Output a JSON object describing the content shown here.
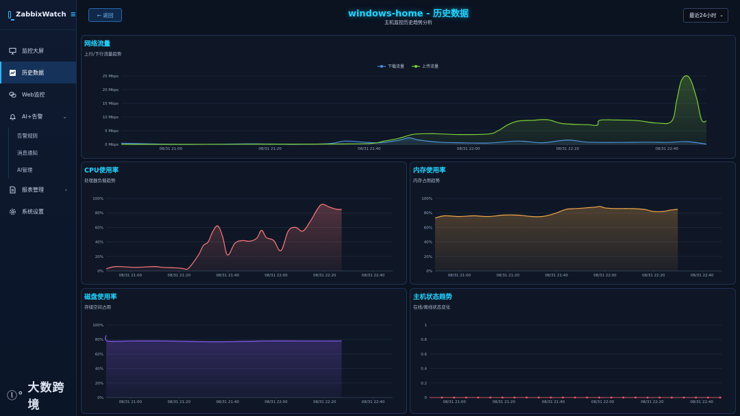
{
  "app": {
    "name": "ZabbixWatch"
  },
  "sidebar": {
    "items": [
      {
        "label": "监控大屏",
        "icon": "monitor-icon"
      },
      {
        "label": "历史数据",
        "icon": "chart-icon",
        "active": true
      },
      {
        "label": "Web监控",
        "icon": "link-icon"
      },
      {
        "label": "AI+告警",
        "icon": "bell-icon",
        "expanded": true
      },
      {
        "label": "报表管理",
        "icon": "report-icon"
      },
      {
        "label": "系统设置",
        "icon": "gear-icon"
      }
    ],
    "alert_sub_items": [
      "告警规则",
      "消息通知",
      "AI管理"
    ],
    "watermark": "大数跨境"
  },
  "header": {
    "back_label": "← 返回",
    "title": "windows-home - 历史数据",
    "subtitle": "主机监控历史趋势分析",
    "range_value": "最近24小时"
  },
  "colors": {
    "accent": "#22d3ff",
    "download": "#4a8fe6",
    "upload": "#7fd13b",
    "cpu": "#ff7b7b",
    "memory": "#f0a848",
    "disk": "#8b5cf6",
    "status": "#ff5a6e"
  },
  "panels": {
    "network": {
      "title": "网络流量",
      "subtitle": "上行/下行流量趋势"
    },
    "cpu": {
      "title": "CPU使用率",
      "subtitle": "处理器负载趋势"
    },
    "memory": {
      "title": "内存使用率",
      "subtitle": "内存占用趋势"
    },
    "disk": {
      "title": "磁盘使用率",
      "subtitle": "存储空间占用"
    },
    "status": {
      "title": "主机状态趋势",
      "subtitle": "在线/离线状态变化"
    }
  },
  "chart_data": [
    {
      "id": "network",
      "type": "area",
      "y_ticks": [
        "0 Mbps",
        "5 Mbps",
        "10 Mbps",
        "15 Mbps",
        "20 Mbps",
        "25 Mbps"
      ],
      "ylim": [
        0,
        25
      ],
      "x_range_minutes": [
        1250,
        1368
      ],
      "x_ticks": [
        "08/31 21:00",
        "08/31 21:20",
        "08/31 21:40",
        "08/31 22:00",
        "08/31 22:20",
        "08/31 22:40"
      ],
      "x_tick_minutes": [
        1260,
        1280,
        1300,
        1320,
        1340,
        1360
      ],
      "legend_position": "top-center",
      "grid": true,
      "series": [
        {
          "name": "下载流量",
          "color": "#4a8fe6",
          "points": [
            [
              1250,
              0.4
            ],
            [
              1258,
              0.1
            ],
            [
              1264,
              0.0
            ],
            [
              1270,
              0.05
            ],
            [
              1276,
              0.2
            ],
            [
              1282,
              0.1
            ],
            [
              1285,
              0.0
            ],
            [
              1292,
              0.3
            ],
            [
              1295,
              1.2
            ],
            [
              1299,
              0.8
            ],
            [
              1302,
              0.6
            ],
            [
              1306,
              1.5
            ],
            [
              1308,
              2.4
            ],
            [
              1310,
              1.6
            ],
            [
              1314,
              0.8
            ],
            [
              1318,
              0.6
            ],
            [
              1324,
              0.5
            ],
            [
              1330,
              1.2
            ],
            [
              1335,
              0.6
            ],
            [
              1340,
              1.6
            ],
            [
              1344,
              0.8
            ],
            [
              1350,
              0.7
            ],
            [
              1356,
              0.8
            ],
            [
              1360,
              0.7
            ],
            [
              1364,
              1.0
            ],
            [
              1368,
              0.1
            ]
          ]
        },
        {
          "name": "上传流量",
          "color": "#7fd13b",
          "points": [
            [
              1250,
              0.0
            ],
            [
              1262,
              0.0
            ],
            [
              1275,
              0.05
            ],
            [
              1290,
              0.1
            ],
            [
              1300,
              0.3
            ],
            [
              1303,
              1.2
            ],
            [
              1306,
              2.2
            ],
            [
              1309,
              3.7
            ],
            [
              1313,
              3.9
            ],
            [
              1318,
              3.6
            ],
            [
              1324,
              3.8
            ],
            [
              1326,
              5.0
            ],
            [
              1328,
              7.2
            ],
            [
              1330,
              8.5
            ],
            [
              1333,
              8.8
            ],
            [
              1336,
              9.0
            ],
            [
              1339,
              7.6
            ],
            [
              1344,
              7.2
            ],
            [
              1346,
              7.0
            ],
            [
              1346.5,
              8.8
            ],
            [
              1350,
              8.9
            ],
            [
              1354,
              8.7
            ],
            [
              1358,
              7.8
            ],
            [
              1361,
              8.5
            ],
            [
              1362,
              16
            ],
            [
              1363,
              23.5
            ],
            [
              1364.5,
              24.5
            ],
            [
              1366,
              17
            ],
            [
              1367,
              9
            ],
            [
              1368,
              8.5
            ]
          ]
        }
      ]
    },
    {
      "id": "cpu",
      "type": "area",
      "y_ticks": [
        "0%",
        "20%",
        "40%",
        "60%",
        "80%",
        "100%"
      ],
      "ylim": [
        0,
        100
      ],
      "x_range_minutes": [
        1250,
        1368
      ],
      "x_ticks": [
        "08/31 21:00",
        "08/31 21:20",
        "08/31 21:40",
        "08/31 22:00",
        "08/31 22:20",
        "08/31 22:40"
      ],
      "x_tick_minutes": [
        1260,
        1280,
        1300,
        1320,
        1340,
        1360
      ],
      "grid": true,
      "series": [
        {
          "name": "",
          "color": "#ff7b7b",
          "points": [
            [
              1250,
              3
            ],
            [
              1254,
              6
            ],
            [
              1262,
              5
            ],
            [
              1270,
              6
            ],
            [
              1273,
              5
            ],
            [
              1280,
              4
            ],
            [
              1282,
              3
            ],
            [
              1284,
              4
            ],
            [
              1288,
              22
            ],
            [
              1290,
              35
            ],
            [
              1292,
              40
            ],
            [
              1294,
              55
            ],
            [
              1296,
              62
            ],
            [
              1298,
              47
            ],
            [
              1300,
              22
            ],
            [
              1303,
              38
            ],
            [
              1306,
              42
            ],
            [
              1309,
              41
            ],
            [
              1312,
              45
            ],
            [
              1314,
              56
            ],
            [
              1316,
              46
            ],
            [
              1319,
              42
            ],
            [
              1322,
              28
            ],
            [
              1325,
              55
            ],
            [
              1328,
              60
            ],
            [
              1331,
              55
            ],
            [
              1334,
              68
            ],
            [
              1337,
              85
            ],
            [
              1339,
              92
            ],
            [
              1342,
              88
            ],
            [
              1345,
              85
            ],
            [
              1347,
              85
            ]
          ]
        }
      ]
    },
    {
      "id": "memory",
      "type": "area",
      "y_ticks": [
        "0%",
        "20%",
        "40%",
        "60%",
        "80%",
        "100%"
      ],
      "ylim": [
        0,
        100
      ],
      "x_range_minutes": [
        1250,
        1368
      ],
      "x_ticks": [
        "08/31 21:00",
        "08/31 21:20",
        "08/31 21:40",
        "08/31 22:00",
        "08/31 22:20",
        "08/31 22:40"
      ],
      "x_tick_minutes": [
        1260,
        1280,
        1300,
        1320,
        1340,
        1360
      ],
      "grid": true,
      "series": [
        {
          "name": "",
          "color": "#f0a848",
          "points": [
            [
              1250,
              73
            ],
            [
              1254,
              76
            ],
            [
              1260,
              75
            ],
            [
              1266,
              76
            ],
            [
              1272,
              75
            ],
            [
              1278,
              77
            ],
            [
              1284,
              77
            ],
            [
              1290,
              75
            ],
            [
              1294,
              75
            ],
            [
              1297,
              77
            ],
            [
              1300,
              80
            ],
            [
              1304,
              85
            ],
            [
              1308,
              86
            ],
            [
              1312,
              87
            ],
            [
              1316,
              88
            ],
            [
              1318,
              89
            ],
            [
              1320,
              87
            ],
            [
              1324,
              86
            ],
            [
              1330,
              86
            ],
            [
              1336,
              85
            ],
            [
              1340,
              82
            ],
            [
              1344,
              82
            ],
            [
              1347,
              84
            ],
            [
              1350,
              85
            ]
          ]
        }
      ]
    },
    {
      "id": "disk",
      "type": "area",
      "y_ticks": [
        "0%",
        "20%",
        "40%",
        "60%",
        "80%",
        "100%"
      ],
      "ylim": [
        0,
        100
      ],
      "x_range_minutes": [
        1250,
        1368
      ],
      "x_ticks": [
        "08/31 21:00",
        "08/31 21:20",
        "08/31 21:40",
        "08/31 22:00",
        "08/31 22:20",
        "08/31 22:40"
      ],
      "x_tick_minutes": [
        1260,
        1280,
        1300,
        1320,
        1340,
        1360
      ],
      "grid": true,
      "series": [
        {
          "name": "",
          "color": "#8b5cf6",
          "points": [
            [
              1250,
              86
            ],
            [
              1250.5,
              78
            ],
            [
              1260,
              78
            ],
            [
              1275,
              78
            ],
            [
              1290,
              77
            ],
            [
              1300,
              77
            ],
            [
              1315,
              78
            ],
            [
              1330,
              78
            ],
            [
              1340,
              78
            ],
            [
              1347,
              78
            ]
          ]
        }
      ]
    },
    {
      "id": "status",
      "type": "line",
      "y_ticks": [
        "0",
        "0.2",
        "0.4",
        "0.6",
        "0.8",
        "1"
      ],
      "ylim": [
        0,
        1
      ],
      "x_range_minutes": [
        1250,
        1368
      ],
      "x_ticks": [
        "08/31 21:00",
        "08/31 21:20",
        "08/31 21:40",
        "08/31 22:00",
        "08/31 22:20",
        "08/31 22:40"
      ],
      "x_tick_minutes": [
        1260,
        1280,
        1300,
        1320,
        1340,
        1360
      ],
      "grid": true,
      "series": [
        {
          "name": "",
          "color": "#ff5a6e",
          "marker_count": 24,
          "value": 0
        }
      ]
    }
  ]
}
